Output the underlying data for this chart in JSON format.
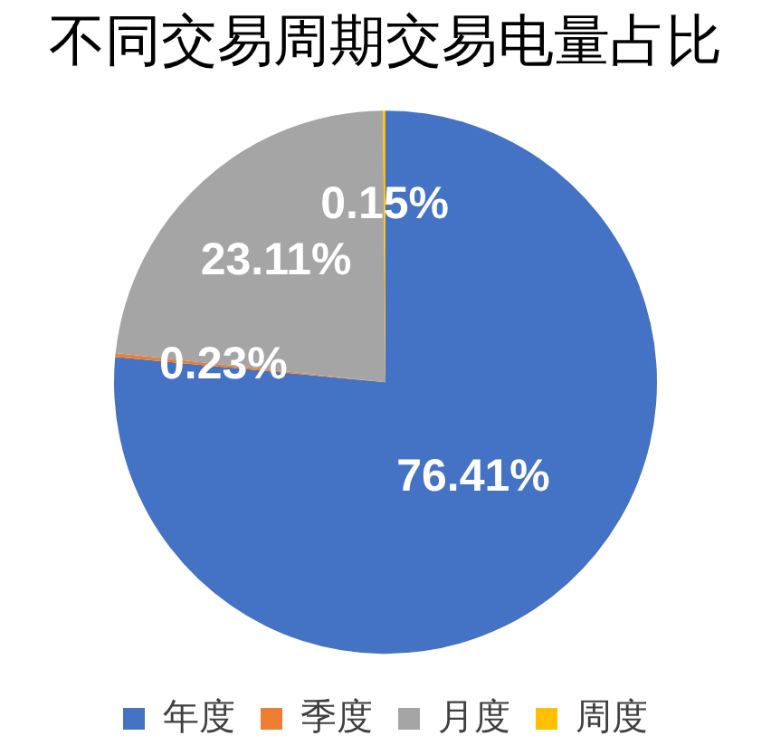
{
  "chart_data": {
    "type": "pie",
    "title": "不同交易周期交易电量占比",
    "categories": [
      "年度",
      "季度",
      "月度",
      "周度"
    ],
    "values": [
      76.41,
      0.23,
      23.11,
      0.15
    ],
    "value_labels": [
      "76.41%",
      "0.23%",
      "23.11%",
      "0.15%"
    ],
    "colors": [
      "#4472c4",
      "#ed7d31",
      "#a5a5a5",
      "#ffc000"
    ],
    "legend": "bottom"
  }
}
